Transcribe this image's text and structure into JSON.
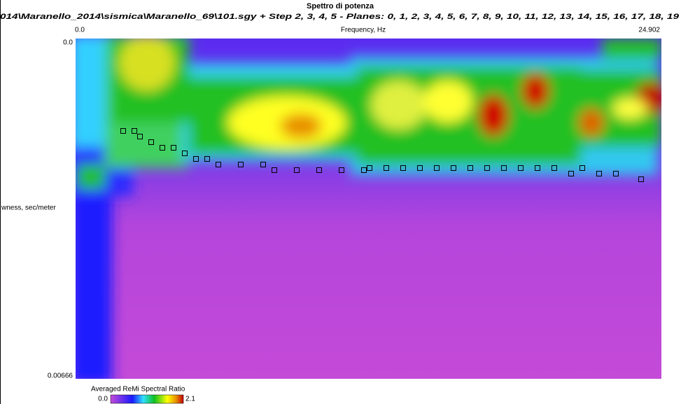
{
  "window": {
    "title": "Spettro di potenza",
    "subtitle": "014\\Maranello_2014\\sismica\\Maranello_69\\101.sgy + Step 2, 3, 4, 5 - Planes: 0, 1, 2, 3, 4, 5, 6, 7, 8, 9, 10, 11, 12, 13, 14, 15, 16, 17, 18, 19",
    "x_axis": {
      "label": "Frequency, Hz",
      "min_label": "0.0",
      "max_label": "24.902",
      "min": 0,
      "max": 24.902
    },
    "y_axis": {
      "label": "wness, sec/meter",
      "min_label": "0.0",
      "max_label": "0.00666",
      "min": 0,
      "max": 0.00666
    },
    "colorbar": {
      "title": "Averaged ReMi Spectral Ratio",
      "min_label": "0.0",
      "max_label": "2.1"
    },
    "picks": [
      [
        2.023,
        0.001809
      ],
      [
        2.499,
        0.001809
      ],
      [
        2.737,
        0.001919
      ],
      [
        3.213,
        0.002028
      ],
      [
        3.689,
        0.002138
      ],
      [
        4.165,
        0.002138
      ],
      [
        4.641,
        0.002247
      ],
      [
        5.117,
        0.002357
      ],
      [
        5.593,
        0.002357
      ],
      [
        6.069,
        0.002467
      ],
      [
        7.021,
        0.002467
      ],
      [
        7.973,
        0.002467
      ],
      [
        8.449,
        0.002576
      ],
      [
        9.401,
        0.002576
      ],
      [
        10.353,
        0.002576
      ],
      [
        11.305,
        0.002576
      ],
      [
        12.257,
        0.002576
      ],
      [
        12.495,
        0.002535
      ],
      [
        13.209,
        0.002535
      ],
      [
        13.923,
        0.002535
      ],
      [
        14.637,
        0.002535
      ],
      [
        15.351,
        0.002535
      ],
      [
        16.065,
        0.002535
      ],
      [
        16.779,
        0.002535
      ],
      [
        17.493,
        0.002535
      ],
      [
        18.207,
        0.002535
      ],
      [
        18.921,
        0.002535
      ],
      [
        19.635,
        0.002535
      ],
      [
        20.349,
        0.002535
      ],
      [
        21.063,
        0.002645
      ],
      [
        21.539,
        0.002535
      ],
      [
        22.253,
        0.002645
      ],
      [
        22.967,
        0.002645
      ],
      [
        24.038,
        0.002755
      ]
    ]
  }
}
